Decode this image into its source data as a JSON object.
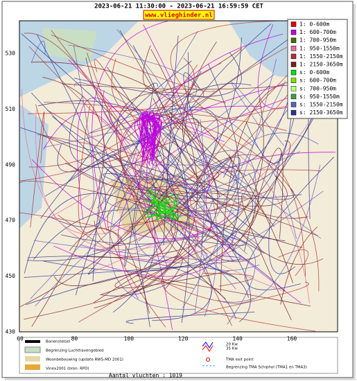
{
  "header": {
    "period": "2023-06-21 11:30:00 - 2023-06-21 16:59:59 CET",
    "site": "www.vlieghinder.nl"
  },
  "map": {
    "x_labels": [
      60,
      80,
      100,
      120,
      140,
      160
    ],
    "y_labels": [
      530,
      510,
      490,
      470,
      450,
      430
    ],
    "legend": [
      {
        "label": "1: 0-600m",
        "color": "#e00000"
      },
      {
        "label": "1: 600-700m",
        "color": "#c000e0"
      },
      {
        "label": "1: 700-950m",
        "color": "#407000"
      },
      {
        "label": "1: 950-1550m",
        "color": "#e070a0"
      },
      {
        "label": "1: 1550-2150m",
        "color": "#b03030"
      },
      {
        "label": "1: 2150-3650m",
        "color": "#7a1f1f"
      },
      {
        "label": "s: 0-600m",
        "color": "#00e000"
      },
      {
        "label": "s: 600-700m",
        "color": "#80e000"
      },
      {
        "label": "s: 700-950m",
        "color": "#c0ff80"
      },
      {
        "label": "s: 950-1550m",
        "color": "#40a040"
      },
      {
        "label": "s: 1550-2150m",
        "color": "#6060c0"
      },
      {
        "label": "s: 2150-3650m",
        "color": "#303090"
      }
    ]
  },
  "footer": {
    "runways": "Banenstelsel",
    "airport_boundary": "Begrenzing Luchthavengebied",
    "housing": "Woonbebouwing (update RWS-MD 2001)",
    "vinex": "Vinex2001 (bron: RPD)",
    "kw20": "20 Kw",
    "kw35": "35 Kw",
    "tma_exit": "TMA exit point",
    "tma_boundary": "Begrenzing TMA Schiphol  (TMA1 en TMA3)",
    "flights": "Aantal vluchten : 1019"
  }
}
